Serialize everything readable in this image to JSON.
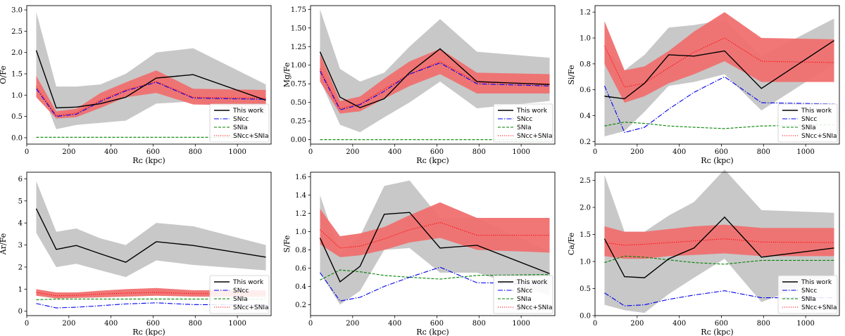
{
  "chart_data": [
    {
      "type": "line",
      "ylabel": "O/Fe",
      "xlabel": "Rᴄ (kpc)",
      "xlim": [
        0,
        1160
      ],
      "ylim": [
        -0.15,
        3.1
      ],
      "xticks": [
        0,
        200,
        400,
        600,
        800,
        1000
      ],
      "yticks": [
        0.0,
        0.5,
        1.0,
        1.5,
        2.0,
        2.5,
        3.0
      ],
      "ytick_labels": [
        "0.0",
        "0.5",
        "1.0",
        "1.5",
        "2.0",
        "2.5",
        "3.0"
      ],
      "x": [
        45,
        140,
        235,
        350,
        470,
        615,
        790,
        1135
      ],
      "series": [
        {
          "name": "This work",
          "values": [
            2.05,
            0.7,
            0.72,
            0.8,
            0.95,
            1.4,
            1.48,
            0.88
          ],
          "lower": [
            1.4,
            0.2,
            0.3,
            0.35,
            0.4,
            0.8,
            0.85,
            0.55
          ],
          "upper": [
            2.95,
            1.2,
            1.2,
            1.25,
            1.5,
            2.0,
            2.1,
            1.25
          ]
        },
        {
          "name": "SNcc",
          "values": [
            1.15,
            0.5,
            0.55,
            0.85,
            1.1,
            1.3,
            0.93,
            0.9
          ]
        },
        {
          "name": "SNIa",
          "values": [
            0.01,
            0.01,
            0.01,
            0.01,
            0.01,
            0.01,
            0.01,
            0.01
          ]
        },
        {
          "name": "SNcc+SNIa",
          "values": [
            1.2,
            0.52,
            0.58,
            0.88,
            1.12,
            1.32,
            0.95,
            0.93
          ],
          "lower": [
            0.95,
            0.45,
            0.48,
            0.7,
            0.95,
            1.05,
            0.78,
            0.75
          ],
          "upper": [
            1.45,
            0.62,
            0.68,
            1.05,
            1.3,
            1.58,
            1.15,
            1.12
          ]
        }
      ],
      "legend": [
        "This work",
        "SNcc",
        "SNIa",
        "SNcc+SNIa"
      ],
      "legend_loc": "lower-right"
    },
    {
      "type": "line",
      "ylabel": "Mg/Fe",
      "xlabel": "Rᴄ (kpc)",
      "xlim": [
        0,
        1160
      ],
      "ylim": [
        -0.06,
        1.8
      ],
      "xticks": [
        0,
        200,
        400,
        600,
        800,
        1000
      ],
      "yticks": [
        0.0,
        0.25,
        0.5,
        0.75,
        1.0,
        1.25,
        1.5,
        1.75
      ],
      "ytick_labels": [
        "0.00",
        "0.25",
        "0.50",
        "0.75",
        "1.00",
        "1.25",
        "1.50",
        "1.75"
      ],
      "x": [
        45,
        140,
        235,
        350,
        470,
        615,
        790,
        1135
      ],
      "series": [
        {
          "name": "This work",
          "values": [
            1.18,
            0.57,
            0.43,
            0.55,
            0.9,
            1.22,
            0.78,
            0.74
          ],
          "lower": [
            0.8,
            0.2,
            0.1,
            0.3,
            0.5,
            0.78,
            0.42,
            0.52
          ],
          "upper": [
            1.75,
            0.95,
            0.78,
            0.9,
            1.25,
            1.62,
            1.18,
            1.1
          ]
        },
        {
          "name": "SNcc",
          "values": [
            0.92,
            0.4,
            0.47,
            0.65,
            0.88,
            1.03,
            0.75,
            0.72
          ]
        },
        {
          "name": "SNIa",
          "values": [
            0.0,
            0.0,
            0.0,
            0.0,
            0.0,
            0.0,
            0.0,
            0.0
          ]
        },
        {
          "name": "SNcc+SNIa",
          "values": [
            0.95,
            0.42,
            0.48,
            0.68,
            0.88,
            1.05,
            0.77,
            0.75
          ],
          "lower": [
            0.78,
            0.35,
            0.38,
            0.55,
            0.72,
            0.88,
            0.62,
            0.62
          ],
          "upper": [
            1.15,
            0.52,
            0.58,
            0.82,
            1.05,
            1.22,
            0.9,
            0.88
          ]
        }
      ],
      "legend": [
        "This work",
        "SNcc",
        "SNIa",
        "SNcc+SNIa"
      ],
      "legend_loc": "lower-right"
    },
    {
      "type": "line",
      "ylabel": "Si/Fe",
      "xlabel": "Rᴄ (kpc)",
      "xlim": [
        0,
        1160
      ],
      "ylim": [
        0.18,
        1.25
      ],
      "xticks": [
        0,
        200,
        400,
        600,
        800,
        1000
      ],
      "yticks": [
        0.2,
        0.4,
        0.6,
        0.8,
        1.0,
        1.2
      ],
      "ytick_labels": [
        "0.2",
        "0.4",
        "0.6",
        "0.8",
        "1.0",
        "1.2"
      ],
      "x": [
        45,
        140,
        235,
        350,
        470,
        615,
        790,
        1135
      ],
      "series": [
        {
          "name": "This work",
          "values": [
            0.55,
            0.53,
            0.65,
            0.87,
            0.86,
            0.9,
            0.61,
            0.98
          ],
          "lower": [
            0.24,
            0.28,
            0.43,
            0.63,
            0.66,
            0.72,
            0.44,
            0.8
          ],
          "upper": [
            0.92,
            0.75,
            0.87,
            1.08,
            1.1,
            1.14,
            0.86,
            1.15
          ]
        },
        {
          "name": "SNcc",
          "values": [
            0.63,
            0.27,
            0.31,
            0.45,
            0.58,
            0.7,
            0.5,
            0.49
          ]
        },
        {
          "name": "SNIa",
          "values": [
            0.32,
            0.35,
            0.34,
            0.32,
            0.31,
            0.3,
            0.32,
            0.33
          ]
        },
        {
          "name": "SNcc+SNIa",
          "values": [
            0.94,
            0.62,
            0.65,
            0.77,
            0.89,
            1.0,
            0.82,
            0.81
          ],
          "lower": [
            0.8,
            0.5,
            0.55,
            0.65,
            0.72,
            0.82,
            0.66,
            0.66
          ],
          "upper": [
            1.13,
            0.75,
            0.78,
            0.9,
            1.05,
            1.2,
            1.0,
            0.99
          ]
        }
      ],
      "legend": [
        "This work",
        "SNcc",
        "SNIa",
        "SNcc+SNIa"
      ],
      "legend_loc": "lower-right"
    },
    {
      "type": "line",
      "ylabel": "Ar/Fe",
      "xlabel": "Rᴄ (kpc)",
      "xlim": [
        0,
        1160
      ],
      "ylim": [
        -0.2,
        6.3
      ],
      "xticks": [
        0,
        200,
        400,
        600,
        800,
        1000
      ],
      "yticks": [
        0,
        1,
        2,
        3,
        4,
        5,
        6
      ],
      "ytick_labels": [
        "0",
        "1",
        "2",
        "3",
        "4",
        "5",
        "6"
      ],
      "x": [
        45,
        140,
        235,
        350,
        470,
        615,
        790,
        1135
      ],
      "series": [
        {
          "name": "This work",
          "values": [
            4.65,
            2.8,
            2.98,
            2.6,
            2.22,
            3.15,
            2.98,
            2.45
          ],
          "lower": [
            3.55,
            2.0,
            2.15,
            1.85,
            1.55,
            2.3,
            2.1,
            1.85
          ],
          "upper": [
            5.9,
            3.6,
            3.75,
            3.3,
            3.0,
            4.0,
            3.85,
            3.0
          ]
        },
        {
          "name": "SNcc",
          "values": [
            0.35,
            0.15,
            0.18,
            0.25,
            0.33,
            0.38,
            0.3,
            0.28
          ]
        },
        {
          "name": "SNIa",
          "values": [
            0.52,
            0.55,
            0.55,
            0.55,
            0.55,
            0.55,
            0.55,
            0.55
          ]
        },
        {
          "name": "SNcc+SNIa",
          "values": [
            0.85,
            0.7,
            0.72,
            0.78,
            0.82,
            0.85,
            0.8,
            0.8
          ],
          "lower": [
            0.7,
            0.58,
            0.6,
            0.63,
            0.66,
            0.7,
            0.66,
            0.65
          ],
          "upper": [
            1.0,
            0.85,
            0.85,
            0.93,
            1.0,
            1.05,
            0.95,
            0.95
          ]
        }
      ],
      "legend": [
        "This work",
        "SNcc",
        "SNIa",
        "SNcc+SNIa"
      ],
      "legend_loc": "lower-right"
    },
    {
      "type": "line",
      "ylabel": "S/Fe",
      "xlabel": "Rᴄ (kpc)",
      "xlim": [
        0,
        1160
      ],
      "ylim": [
        0.08,
        1.65
      ],
      "xticks": [
        0,
        200,
        400,
        600,
        800,
        1000
      ],
      "yticks": [
        0.2,
        0.4,
        0.6,
        0.8,
        1.0,
        1.2,
        1.4,
        1.6
      ],
      "ytick_labels": [
        "0.2",
        "0.4",
        "0.6",
        "0.8",
        "1.0",
        "1.2",
        "1.4",
        "1.6"
      ],
      "x": [
        45,
        140,
        235,
        350,
        470,
        615,
        790,
        1135
      ],
      "series": [
        {
          "name": "This work",
          "values": [
            0.93,
            0.45,
            0.62,
            1.19,
            1.21,
            0.82,
            0.85,
            0.54
          ],
          "lower": [
            0.55,
            0.2,
            0.35,
            0.8,
            0.82,
            0.55,
            0.55,
            0.3
          ],
          "upper": [
            1.4,
            0.75,
            0.95,
            1.5,
            1.56,
            1.15,
            1.15,
            0.78
          ]
        },
        {
          "name": "SNcc",
          "values": [
            0.55,
            0.24,
            0.28,
            0.4,
            0.5,
            0.61,
            0.44,
            0.43
          ]
        },
        {
          "name": "SNIa",
          "values": [
            0.47,
            0.58,
            0.56,
            0.52,
            0.5,
            0.48,
            0.52,
            0.53
          ]
        },
        {
          "name": "SNcc+SNIa",
          "values": [
            1.02,
            0.82,
            0.84,
            0.92,
            1.02,
            1.1,
            0.96,
            0.96
          ],
          "lower": [
            0.86,
            0.72,
            0.74,
            0.8,
            0.88,
            0.93,
            0.8,
            0.77
          ],
          "upper": [
            1.25,
            0.95,
            0.98,
            1.05,
            1.18,
            1.32,
            1.15,
            1.15
          ]
        }
      ],
      "legend": [
        "This work",
        "SNcc",
        "SNIa",
        "SNcc+SNIa"
      ],
      "legend_loc": "lower-right"
    },
    {
      "type": "line",
      "ylabel": "Ca/Fe",
      "xlabel": "Rᴄ (kpc)",
      "xlim": [
        0,
        1160
      ],
      "ylim": [
        0.0,
        2.65
      ],
      "xticks": [
        0,
        200,
        400,
        600,
        800,
        1000
      ],
      "yticks": [
        0.0,
        0.5,
        1.0,
        1.5,
        2.0,
        2.5
      ],
      "ytick_labels": [
        "0.0",
        "0.5",
        "1.0",
        "1.5",
        "2.0",
        "2.5"
      ],
      "x": [
        45,
        140,
        235,
        350,
        470,
        615,
        790,
        1135
      ],
      "series": [
        {
          "name": "This work",
          "values": [
            1.42,
            0.72,
            0.7,
            1.05,
            1.25,
            1.82,
            1.08,
            1.25
          ],
          "lower": [
            0.2,
            0.1,
            0.05,
            0.4,
            0.7,
            1.05,
            0.25,
            0.75
          ],
          "upper": [
            2.6,
            1.55,
            1.55,
            1.85,
            2.1,
            2.7,
            1.95,
            1.9
          ]
        },
        {
          "name": "SNcc",
          "values": [
            0.42,
            0.18,
            0.2,
            0.3,
            0.38,
            0.46,
            0.33,
            0.33
          ]
        },
        {
          "name": "SNIa",
          "values": [
            0.98,
            1.1,
            1.08,
            1.03,
            0.98,
            0.95,
            1.02,
            1.02
          ]
        },
        {
          "name": "SNcc+SNIa",
          "values": [
            1.35,
            1.3,
            1.32,
            1.35,
            1.38,
            1.42,
            1.36,
            1.35
          ],
          "lower": [
            1.1,
            1.05,
            1.05,
            1.1,
            1.12,
            1.15,
            1.1,
            1.1
          ],
          "upper": [
            1.65,
            1.55,
            1.55,
            1.6,
            1.65,
            1.68,
            1.62,
            1.62
          ]
        }
      ],
      "legend": [
        "This work",
        "SNcc",
        "SNIa",
        "SNcc+SNIa"
      ],
      "legend_loc": "lower-right"
    }
  ],
  "colors": {
    "this_work": "#000000",
    "this_work_band": "#c8c8c8",
    "sncc": "#0000ee",
    "snia": "#008000",
    "sncc_snia": "#ff0000",
    "sncc_snia_band": "#f07070"
  }
}
